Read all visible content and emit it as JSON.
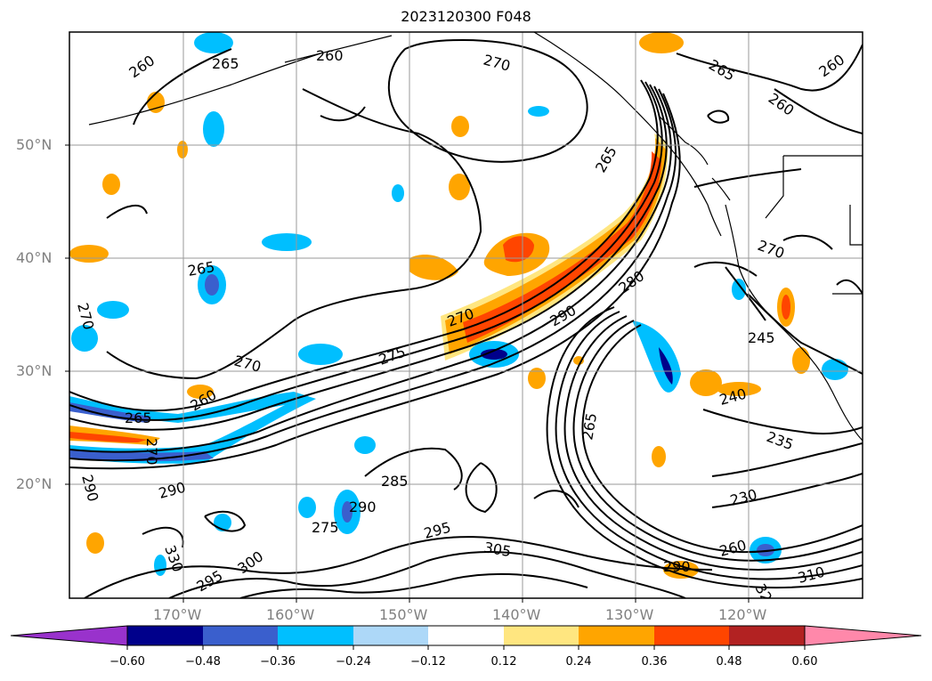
{
  "title": "2023120300 F048",
  "map": {
    "lat_labels": [
      "50°N",
      "40°N",
      "30°N",
      "20°N"
    ],
    "lon_labels": [
      "170°W",
      "160°W",
      "150°W",
      "140°W",
      "130°W",
      "120°W"
    ],
    "lat_range": [
      10,
      60
    ],
    "lon_range": [
      -180,
      -110
    ],
    "gridlines": true,
    "contour_labels": [
      "260",
      "265",
      "260",
      "270",
      "265",
      "260",
      "260",
      "265",
      "270",
      "265",
      "270",
      "275",
      "280",
      "290",
      "270",
      "245",
      "240",
      "235",
      "230",
      "265",
      "270",
      "260",
      "270",
      "265",
      "290",
      "290",
      "285",
      "290",
      "295",
      "305",
      "300",
      "295",
      "275",
      "260",
      "290",
      "310",
      "320",
      "330"
    ],
    "coastline_color": "#000000",
    "contour_color": "#000000"
  },
  "colorbar": {
    "ticks": [
      "−0.60",
      "−0.48",
      "−0.36",
      "−0.24",
      "−0.12",
      "0.12",
      "0.24",
      "0.36",
      "0.48",
      "0.60"
    ],
    "colors": [
      "#9932cc",
      "#00008b",
      "#3a5fcd",
      "#00bfff",
      "#add8f8",
      "#ffffff",
      "#ffe680",
      "#ffa500",
      "#ff4500",
      "#b22222",
      "#ff88aa"
    ],
    "extend": "both"
  }
}
